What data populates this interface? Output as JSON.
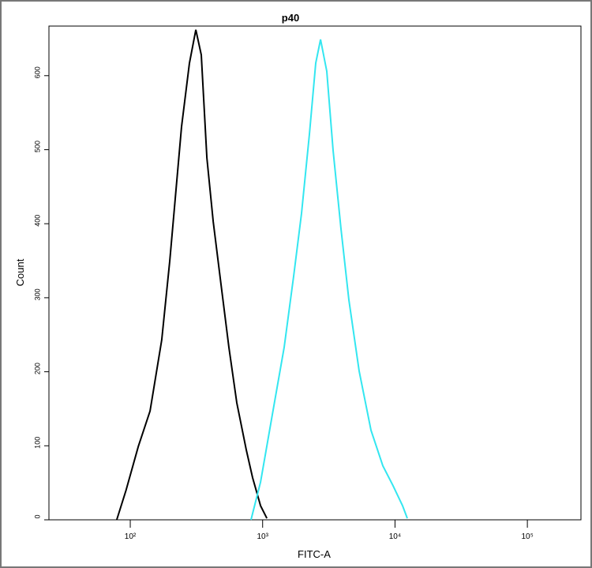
{
  "chart_data": {
    "type": "line",
    "title": "p40",
    "x_label": "FITC-A",
    "y_label": "Count",
    "x_scale": "log",
    "series": [
      {
        "color": "#000000",
        "x": [
          79,
          93,
          115,
          141,
          173,
          199,
          219,
          244,
          280,
          313,
          344,
          379,
          423,
          485,
          556,
          638,
          753,
          840,
          964,
          1076
        ],
        "values": [
          0,
          40,
          99,
          147,
          243,
          350,
          435,
          531,
          617,
          662,
          628,
          489,
          403,
          318,
          233,
          158,
          94,
          57,
          19,
          2
        ]
      },
      {
        "color": "#33e6f0",
        "x": [
          817,
          964,
          1183,
          1454,
          1715,
          1968,
          2258,
          2519,
          2737,
          3054,
          3406,
          3908,
          4484,
          5361,
          6587,
          8096,
          9680,
          11410,
          12390
        ],
        "values": [
          0,
          51,
          142,
          233,
          329,
          414,
          521,
          617,
          649,
          606,
          499,
          393,
          297,
          201,
          121,
          73,
          46,
          19,
          2
        ]
      }
    ],
    "xlim": [
      24.3,
      254000
    ],
    "ylim": [
      0,
      667
    ],
    "xticks": [
      {
        "value": 100,
        "label": "10²"
      },
      {
        "value": 1000,
        "label": "10³"
      },
      {
        "value": 10000,
        "label": "10⁴"
      },
      {
        "value": 100000,
        "label": "10⁵"
      }
    ],
    "yticks": [
      0,
      100,
      200,
      300,
      400,
      500,
      600
    ]
  }
}
